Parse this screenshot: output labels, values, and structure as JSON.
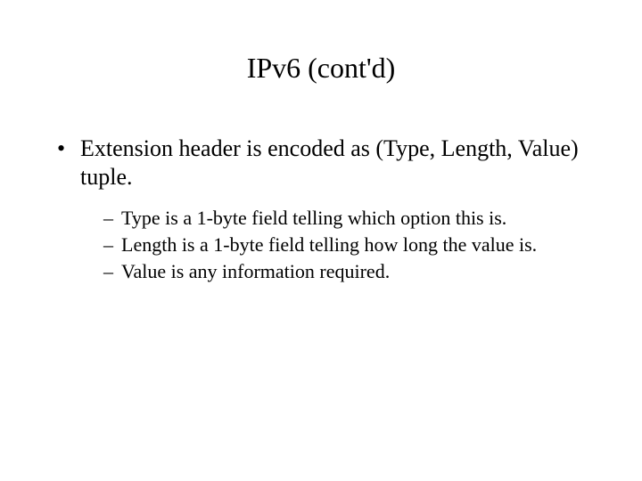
{
  "slide": {
    "title": "IPv6 (cont'd)",
    "bullets": [
      {
        "text": "Extension header is encoded as (Type, Length, Value) tuple.",
        "subs": [
          "Type is a 1-byte field telling which option this is.",
          "Length is a 1-byte field telling how long the value is.",
          "Value is any information required."
        ]
      }
    ],
    "colors": {
      "background": "#ffffff",
      "text": "#000000"
    },
    "typography": {
      "family": "Times New Roman",
      "title_size_pt": 24,
      "body_size_pt": 20,
      "sub_size_pt": 17
    }
  }
}
